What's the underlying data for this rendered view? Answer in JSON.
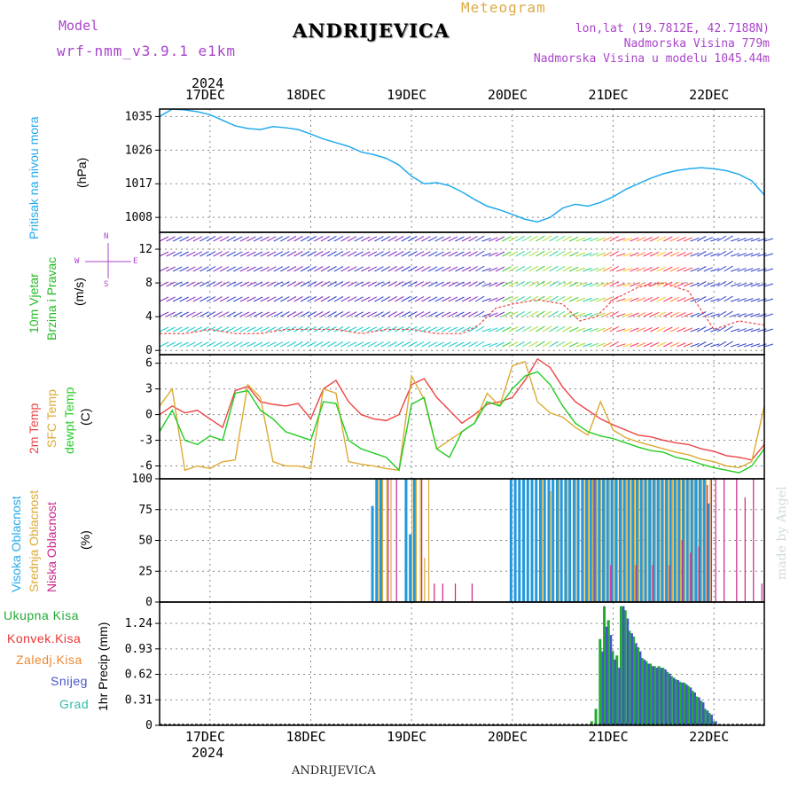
{
  "header": {
    "model_label": "Model",
    "model_name": "wrf-nmm_v3.9.1 e1km",
    "title": "ANDRIJEVICA",
    "product": "Meteogram",
    "lonlat": "lon,lat (19.7812E, 42.7188N)",
    "elevation": "Nadmorska Visina 779m",
    "model_elevation": "Nadmorska Visina u modelu 1045.44m"
  },
  "footer": {
    "station": "ANDRIJEVICA",
    "watermark": "made by Angel"
  },
  "colors": {
    "pressure": "#22aaee",
    "temp2m": "#ee4444",
    "sfc": "#ddaa33",
    "dewpt": "#22cc22",
    "high_cloud": "#2299dd",
    "mid_cloud": "#ddaa33",
    "low_cloud": "#cc2288",
    "total_precip": "#22aa33",
    "snow": "#4455cc",
    "conv": "#ee3333",
    "freezing": "#ee8833",
    "graupel": "#33bbaa",
    "wind_label": "#22bb22",
    "compass": "#aa44cc"
  },
  "time_axis": {
    "year": "2024",
    "days": [
      "17DEC",
      "18DEC",
      "19DEC",
      "20DEC",
      "21DEC",
      "22DEC"
    ],
    "day_start_hours": [
      12,
      36,
      60,
      84,
      108,
      132
    ],
    "total_hours": 144
  },
  "panels": {
    "pressure": {
      "label": "Pritisak na nivou mora",
      "unit": "(hPa)"
    },
    "wind": {
      "label1": "10m Vjetar",
      "label2": "Brzina i Pravac",
      "unit": "(m/s)",
      "compass_n": "N",
      "compass_s": "S",
      "compass_e": "E",
      "compass_w": "W"
    },
    "temp": {
      "label1": "2m Temp",
      "label2": "SFC Temp",
      "label3": "dewpt Temp",
      "unit": "(C)"
    },
    "cloud": {
      "label1": "Visoka Oblacnost",
      "label2": "Srednja Oblacnost",
      "label3": "Niska Oblacnost",
      "unit": "(%)"
    },
    "precip": {
      "label": "1hr Precip",
      "unit": "(mm)",
      "legend": [
        "Ukupna Kisa",
        "Konvek.Kisa",
        "Zaledj.Kisa",
        "Snijeg",
        "Grad"
      ]
    }
  },
  "chart_data": [
    {
      "type": "line",
      "title": "Pritisak na nivou mora",
      "ylabel": "(hPa)",
      "ylim": [
        1004,
        1037
      ],
      "yticks": [
        1008,
        1017,
        1026,
        1035
      ],
      "x_unit": "hours from 17DEC 00 UTC",
      "series": [
        {
          "name": "Pritisak na nivou mora",
          "x": [
            0,
            3,
            6,
            9,
            12,
            15,
            18,
            21,
            24,
            27,
            30,
            33,
            36,
            39,
            42,
            45,
            48,
            51,
            54,
            57,
            60,
            63,
            66,
            69,
            72,
            75,
            78,
            81,
            84,
            87,
            90,
            93,
            96,
            99,
            102,
            105,
            108,
            111,
            114,
            117,
            120,
            123,
            126,
            129,
            132,
            135,
            138,
            141,
            144
          ],
          "values": [
            1035,
            1037,
            1036.8,
            1036.3,
            1035.5,
            1034,
            1032.5,
            1031.8,
            1031.5,
            1032.3,
            1032,
            1031.5,
            1030.3,
            1029,
            1028,
            1027,
            1025.5,
            1024.8,
            1023.8,
            1022,
            1019,
            1017,
            1017.3,
            1016.5,
            1014.8,
            1012.8,
            1011,
            1010,
            1008.8,
            1007.5,
            1006.8,
            1008,
            1010.5,
            1011.5,
            1011,
            1012,
            1013.5,
            1015.5,
            1017,
            1018.5,
            1019.7,
            1020.5,
            1021,
            1021.3,
            1021,
            1020.5,
            1019.5,
            1017.8,
            1014
          ]
        }
      ]
    },
    {
      "type": "line",
      "title": "10m Vjetar Brzina i Pravac",
      "ylabel": "(m/s)",
      "ylim": [
        -0.5,
        14
      ],
      "yticks": [
        0,
        4,
        8,
        12
      ],
      "x_unit": "hours from 17DEC 00 UTC",
      "series": [
        {
          "name": "Brzina",
          "x": [
            0,
            6,
            12,
            18,
            24,
            30,
            36,
            42,
            48,
            54,
            60,
            66,
            72,
            76,
            80,
            84,
            90,
            96,
            100,
            104,
            108,
            114,
            120,
            126,
            132,
            138,
            144
          ],
          "values": [
            2,
            2,
            2.5,
            2,
            2,
            2.5,
            2.5,
            2.5,
            2,
            2.5,
            2.5,
            2,
            2,
            3,
            5,
            5.5,
            6,
            5.5,
            3.5,
            4,
            6,
            7.5,
            8,
            7,
            2.5,
            3.5,
            3
          ]
        }
      ]
    },
    {
      "type": "line",
      "title": "2m Temp / SFC Temp / dewpt Temp",
      "ylabel": "(C)",
      "ylim": [
        -7.5,
        7
      ],
      "yticks": [
        -6,
        -3,
        0,
        3,
        6
      ],
      "x_unit": "hours from 17DEC 00 UTC",
      "series": [
        {
          "name": "2m Temp",
          "x": [
            0,
            3,
            6,
            9,
            12,
            15,
            18,
            21,
            24,
            27,
            30,
            33,
            36,
            39,
            42,
            45,
            48,
            51,
            54,
            57,
            60,
            63,
            66,
            69,
            72,
            75,
            78,
            81,
            84,
            87,
            90,
            93,
            96,
            99,
            102,
            105,
            108,
            111,
            114,
            117,
            120,
            123,
            126,
            129,
            132,
            135,
            138,
            141,
            144
          ],
          "values": [
            0,
            1,
            0.2,
            0.5,
            -0.5,
            -1.5,
            2.8,
            3.3,
            1.5,
            1.2,
            1,
            1.3,
            -0.5,
            3,
            4,
            1.5,
            0,
            -0.5,
            -0.7,
            0,
            3.5,
            4.2,
            2,
            0.5,
            -1,
            0,
            1.2,
            1.5,
            2,
            4,
            6.5,
            5.5,
            3.2,
            1.5,
            0.5,
            -0.5,
            -1.2,
            -1.8,
            -2.4,
            -2.6,
            -3,
            -3.3,
            -3.5,
            -4,
            -4.3,
            -4.8,
            -5,
            -5.3,
            -3.5
          ]
        },
        {
          "name": "SFC Temp",
          "x": [
            0,
            3,
            6,
            9,
            12,
            15,
            18,
            21,
            24,
            27,
            30,
            33,
            36,
            39,
            42,
            45,
            48,
            51,
            54,
            57,
            60,
            63,
            66,
            69,
            72,
            75,
            78,
            81,
            84,
            87,
            90,
            93,
            96,
            99,
            102,
            105,
            108,
            111,
            114,
            117,
            120,
            123,
            126,
            129,
            132,
            135,
            138,
            141,
            144
          ],
          "values": [
            1,
            3,
            -6.5,
            -6,
            -6.3,
            -5.5,
            -5.3,
            3.5,
            2,
            -5.5,
            -6,
            -6,
            -6.3,
            3,
            2.5,
            -5.5,
            -5.8,
            -6,
            -6.3,
            -6.5,
            4.5,
            1.8,
            -4,
            -3,
            -2,
            -1,
            2.5,
            1,
            5.7,
            6.2,
            1.5,
            0.2,
            -0.3,
            -1.5,
            -2.4,
            1.5,
            -1.8,
            -2.7,
            -3.2,
            -3.6,
            -4,
            -4.4,
            -4.7,
            -5.2,
            -5.5,
            -6,
            -6.2,
            -5.5,
            1
          ]
        },
        {
          "name": "dewpt Temp",
          "x": [
            0,
            3,
            6,
            9,
            12,
            15,
            18,
            21,
            24,
            27,
            30,
            33,
            36,
            39,
            42,
            45,
            48,
            51,
            54,
            57,
            60,
            63,
            66,
            69,
            72,
            75,
            78,
            81,
            84,
            87,
            90,
            93,
            96,
            99,
            102,
            105,
            108,
            111,
            114,
            117,
            120,
            123,
            126,
            129,
            132,
            135,
            138,
            141,
            144
          ],
          "values": [
            -2,
            0.5,
            -3,
            -3.5,
            -2.5,
            -3,
            2.5,
            2.8,
            0.5,
            -0.5,
            -2,
            -2.5,
            -3,
            1.5,
            1.3,
            -3,
            -4,
            -4.5,
            -5,
            -6.5,
            1.2,
            2,
            -4,
            -5,
            -2,
            -1,
            1.5,
            1,
            3,
            4.5,
            5,
            3.5,
            1,
            -1,
            -2,
            -2.5,
            -2.8,
            -3.3,
            -3.8,
            -4.2,
            -4.4,
            -5,
            -5.3,
            -5.8,
            -6.2,
            -6.5,
            -6.8,
            -6,
            -4
          ]
        }
      ]
    },
    {
      "type": "bar",
      "title": "Visoka / Srednja / Niska Oblacnost",
      "ylabel": "(%)",
      "ylim": [
        0,
        100
      ],
      "yticks": [
        0,
        25,
        50,
        75,
        100
      ],
      "x_unit": "hours from 17DEC 00 UTC",
      "series": [
        {
          "name": "Visoka Oblacnost",
          "x": [
            51,
            52,
            53,
            59,
            60,
            61,
            84,
            85,
            86,
            87,
            88,
            89,
            90,
            91,
            92,
            93,
            94,
            95,
            96,
            97,
            98,
            99,
            100,
            101,
            102,
            103,
            104,
            105,
            106,
            107,
            108,
            109,
            110,
            111,
            112,
            113,
            114,
            115,
            116,
            117,
            118,
            119,
            120,
            121,
            122,
            123,
            124,
            125,
            126,
            127,
            128,
            129,
            130,
            131
          ],
          "values": [
            78,
            100,
            100,
            100,
            55,
            100,
            100,
            100,
            100,
            100,
            100,
            100,
            100,
            100,
            100,
            100,
            100,
            100,
            100,
            100,
            100,
            100,
            100,
            100,
            100,
            100,
            100,
            100,
            100,
            100,
            100,
            100,
            100,
            100,
            100,
            100,
            100,
            100,
            100,
            100,
            100,
            100,
            100,
            100,
            100,
            100,
            100,
            100,
            100,
            100,
            100,
            100,
            100,
            80
          ]
        },
        {
          "name": "Srednja Oblacnost",
          "x": [
            52,
            53,
            54,
            55,
            60,
            61,
            62,
            63,
            64,
            91,
            93,
            95,
            97,
            99,
            101,
            102,
            103,
            104,
            105,
            106,
            107,
            108,
            109,
            110,
            111,
            112,
            113,
            114,
            115,
            116,
            117,
            118,
            119,
            120,
            121,
            122,
            123,
            124,
            125,
            126,
            127,
            128,
            129,
            130,
            131
          ],
          "values": [
            100,
            100,
            100,
            100,
            100,
            100,
            100,
            36,
            100,
            100,
            90,
            100,
            100,
            100,
            100,
            100,
            100,
            100,
            100,
            100,
            100,
            100,
            100,
            100,
            100,
            100,
            100,
            100,
            100,
            100,
            100,
            100,
            100,
            100,
            100,
            100,
            100,
            100,
            100,
            100,
            100,
            100,
            100,
            100,
            100
          ]
        },
        {
          "name": "Niska Oblacnost",
          "x": [
            54,
            56,
            62,
            65,
            67,
            70,
            74,
            103,
            107,
            113,
            117,
            121,
            124,
            126,
            128,
            130,
            131,
            132,
            134,
            137,
            139,
            141,
            143
          ],
          "values": [
            100,
            100,
            100,
            15,
            15,
            15,
            15,
            100,
            30,
            30,
            30,
            30,
            50,
            40,
            45,
            95,
            100,
            100,
            100,
            100,
            85,
            100,
            15
          ]
        }
      ]
    },
    {
      "type": "bar",
      "title": "1hr Precip",
      "ylabel": "(mm)",
      "ylim": [
        0,
        1.5
      ],
      "yticks": [
        0,
        0.31,
        0.62,
        0.93,
        1.24
      ],
      "x_unit": "hours from 17DEC 00 UTC",
      "series": [
        {
          "name": "Ukupna Kisa",
          "x": [
            103,
            104,
            105,
            106,
            107,
            108,
            109,
            110,
            111,
            112,
            113,
            114,
            115,
            116,
            117,
            118,
            119,
            120,
            121,
            122,
            123,
            124,
            125,
            126,
            127,
            128,
            129,
            130,
            131,
            132
          ],
          "values": [
            0.05,
            0.2,
            1.05,
            1.45,
            1.28,
            0.9,
            0.85,
            1.45,
            1.4,
            1.15,
            1.08,
            0.95,
            0.82,
            0.78,
            0.75,
            0.72,
            0.72,
            0.7,
            0.65,
            0.6,
            0.56,
            0.53,
            0.52,
            0.48,
            0.42,
            0.35,
            0.3,
            0.2,
            0.15,
            0.05
          ]
        },
        {
          "name": "Snijeg",
          "x": [
            105,
            106,
            107,
            108,
            109,
            110,
            111,
            112,
            113,
            114,
            115,
            116,
            117,
            118,
            119,
            120,
            121,
            122,
            123,
            124,
            125,
            126,
            127,
            128,
            129,
            130,
            131,
            132
          ],
          "values": [
            0.9,
            1.2,
            1.1,
            0.8,
            0.7,
            1.45,
            1.3,
            1.12,
            1.0,
            0.9,
            0.8,
            0.75,
            0.72,
            0.7,
            0.7,
            0.68,
            0.63,
            0.58,
            0.55,
            0.52,
            0.5,
            0.46,
            0.4,
            0.34,
            0.28,
            0.18,
            0.13,
            0.05
          ]
        }
      ]
    }
  ]
}
